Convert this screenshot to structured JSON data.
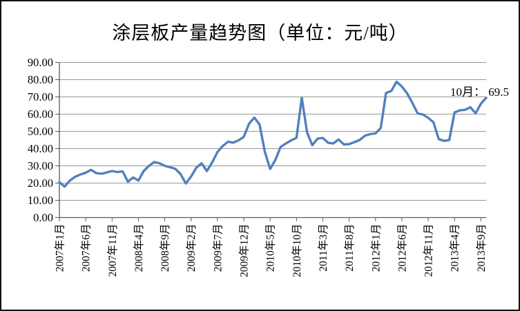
{
  "chart_data": {
    "type": "line",
    "title": "涂层板产量趋势图（单位：元/吨）",
    "xlabel": "",
    "ylabel": "",
    "ylim": [
      0,
      90
    ],
    "y_tick_interval": 10,
    "y_tick_labels": [
      "90.00",
      "80.00",
      "70.00",
      "60.00",
      "50.00",
      "40.00",
      "30.00",
      "20.00",
      "10.00",
      "0.00"
    ],
    "x_tick_every": 5,
    "x_tick_labels": [
      "2007年1月",
      "2007年6月",
      "2007年11月",
      "2008年4月",
      "2008年9月",
      "2009年2月",
      "2009年7月",
      "2009年12月",
      "2010年5月",
      "2010年10月",
      "2011年3月",
      "2011年8月",
      "2012年1月",
      "2012年6月",
      "2012年11月",
      "2013年4月",
      "2013年9月"
    ],
    "x_range_note": "2007年1月-2013年10月",
    "values": [
      20.5,
      18.0,
      21.5,
      23.7,
      25.0,
      26.0,
      27.7,
      25.8,
      25.4,
      26.2,
      27.0,
      26.4,
      26.8,
      20.8,
      23.3,
      21.5,
      27.0,
      30.0,
      32.2,
      31.5,
      30.0,
      29.2,
      28.3,
      25.2,
      19.8,
      23.8,
      29.0,
      31.5,
      27.0,
      32.0,
      38.0,
      41.5,
      44.0,
      43.5,
      44.8,
      46.8,
      54.5,
      58.0,
      54.0,
      38.0,
      28.2,
      33.5,
      41.0,
      43.0,
      44.8,
      46.2,
      69.5,
      49.5,
      42.0,
      45.8,
      46.2,
      43.4,
      43.0,
      45.3,
      42.4,
      42.6,
      43.8,
      45.0,
      47.5,
      48.4,
      48.8,
      52.0,
      72.3,
      73.5,
      78.8,
      76.0,
      72.0,
      66.5,
      60.4,
      59.8,
      57.8,
      55.3,
      45.5,
      44.5,
      45.0,
      61.0,
      62.2,
      62.5,
      64.0,
      60.5,
      66.0,
      69.5
    ],
    "line_color": "#4F81BD",
    "grid": "horizontal",
    "legend": "none",
    "annotation": {
      "text": "10月： 69.5",
      "month_label": "10月",
      "value": 69.5,
      "x_index": 81
    }
  }
}
